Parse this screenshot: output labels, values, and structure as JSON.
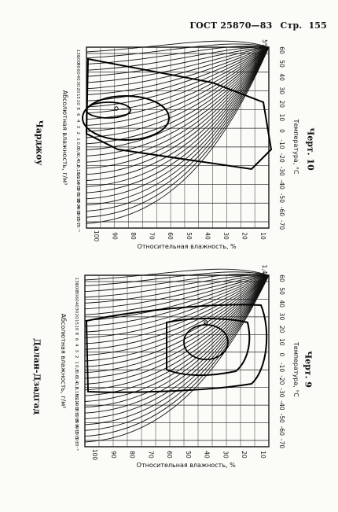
{
  "header": {
    "standard": "ГОСТ 25870—83",
    "page_label": "Стр.",
    "page_number": "155"
  },
  "charts": [
    {
      "id": "chart-10",
      "station": "Чарджоу",
      "caption": "Черт. 10",
      "percent_label": "5%",
      "y_axis_label": "Абсолютная влажность, г/м³",
      "temp_axis_label": "Температура, °С",
      "rh_axis_label": "Относительная влажность, %",
      "temp_ticks": [
        "-70",
        "-60",
        "-50",
        "-40",
        "-30",
        "-20",
        "-10",
        "0",
        "10",
        "20",
        "30",
        "40",
        "50",
        "60"
      ],
      "rh_ticks": [
        "100",
        "90",
        "80",
        "70",
        "60",
        "50",
        "40",
        "30",
        "20",
        "10"
      ],
      "abs_ticks": [
        "130",
        "100",
        "80",
        "60",
        "40",
        "30",
        "20",
        "15",
        "10",
        "8",
        "6",
        "4",
        "3",
        "2",
        "1",
        "0,8",
        "0,6",
        "0,4",
        "0,2",
        "0,15",
        "0,1",
        "6·10⁻²",
        "4·10⁻²",
        "2·10⁻²",
        "1·10⁻²",
        "8·10⁻³",
        "4·10⁻³",
        "2·10⁻³",
        "1·10⁻³"
      ]
    },
    {
      "id": "chart-9",
      "station": "Далан-Дзадгад",
      "caption": "Черт. 9",
      "percent_label": "1,4%",
      "y_axis_label": "Абсолютная влажность, г/м³",
      "temp_axis_label": "Температура, °С",
      "rh_axis_label": "Относительная влажность, %",
      "temp_ticks": [
        "-70",
        "-60",
        "-50",
        "-40",
        "-30",
        "-20",
        "-10",
        "0",
        "10",
        "20",
        "30",
        "40",
        "50",
        "60"
      ],
      "rh_ticks": [
        "100",
        "90",
        "80",
        "70",
        "60",
        "50",
        "40",
        "30",
        "20",
        "10"
      ],
      "abs_ticks": [
        "130",
        "100",
        "80",
        "60",
        "40",
        "30",
        "20",
        "15",
        "10",
        "8",
        "6",
        "4",
        "3",
        "2",
        "1",
        "0,8",
        "0,6",
        "0,4",
        "0,2",
        "0,15",
        "0,1",
        "6·10⁻²",
        "4·10⁻²",
        "2·10⁻²",
        "1·10⁻²",
        "8·10⁻³",
        "4·10⁻³",
        "2·10⁻³",
        "1·10⁻³"
      ]
    }
  ]
}
